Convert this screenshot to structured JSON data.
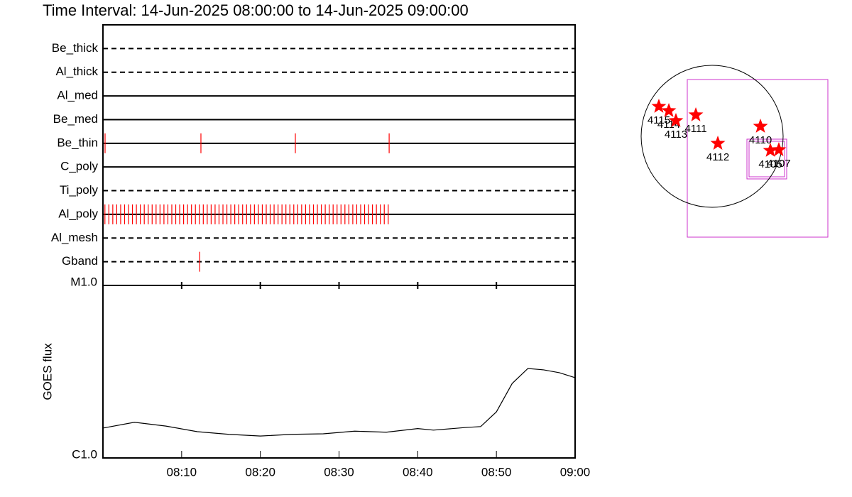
{
  "chart_data": [
    {
      "type": "timeline",
      "title": "Time Interval: 14-Jun-2025 08:00:00 to 14-Jun-2025 09:00:00",
      "xlim": [
        0,
        60
      ],
      "event_color": "#ff0000",
      "rows": [
        {
          "name": "Be_thick",
          "style": "dashed",
          "events": []
        },
        {
          "name": "Al_thick",
          "style": "dashed",
          "events": []
        },
        {
          "name": "Al_med",
          "style": "solid",
          "events": []
        },
        {
          "name": "Be_med",
          "style": "solid",
          "events": []
        },
        {
          "name": "Be_thin",
          "style": "solid",
          "events": [
            0.27,
            12.45,
            24.45,
            36.37
          ]
        },
        {
          "name": "C_poly",
          "style": "solid",
          "events": []
        },
        {
          "name": "Ti_poly",
          "style": "dashed",
          "events": []
        },
        {
          "name": "Al_poly",
          "style": "solid",
          "events": [
            0.25,
            0.75,
            1.25,
            1.75,
            2.25,
            2.75,
            3.25,
            3.75,
            4.25,
            4.75,
            5.25,
            5.75,
            6.25,
            6.75,
            7.25,
            7.75,
            8.25,
            8.75,
            9.25,
            9.75,
            10.25,
            10.75,
            11.25,
            11.75,
            12.25,
            12.75,
            13.25,
            13.75,
            14.25,
            14.75,
            15.25,
            15.75,
            16.25,
            16.75,
            17.25,
            17.75,
            18.25,
            18.75,
            19.25,
            19.75,
            20.25,
            20.75,
            21.25,
            21.75,
            22.25,
            22.75,
            23.25,
            23.75,
            24.25,
            24.75,
            25.25,
            25.75,
            26.25,
            26.75,
            27.25,
            27.75,
            28.25,
            28.75,
            29.25,
            29.75,
            30.25,
            30.75,
            31.25,
            31.75,
            32.25,
            32.75,
            33.25,
            33.75,
            34.25,
            34.75,
            35.25,
            35.75,
            36.25
          ]
        },
        {
          "name": "Al_mesh",
          "style": "dashed",
          "events": []
        },
        {
          "name": "Gband",
          "style": "dashed",
          "events": [
            12.3
          ]
        }
      ]
    },
    {
      "type": "line",
      "ylabel": "GOES flux",
      "log": true,
      "color": "#000000",
      "xlim": [
        0,
        60
      ],
      "xticks": [
        {
          "value": 10,
          "label": "08:10"
        },
        {
          "value": 20,
          "label": "08:20"
        },
        {
          "value": 30,
          "label": "08:30"
        },
        {
          "value": 40,
          "label": "08:40"
        },
        {
          "value": 50,
          "label": "08:50"
        },
        {
          "value": 60,
          "label": "09:00"
        }
      ],
      "ylim": [
        1e-06,
        1e-05
      ],
      "yticks": [
        {
          "value": 1e-06,
          "label": "C1.0"
        },
        {
          "value": 1e-05,
          "label": "M1.0"
        }
      ],
      "x": [
        0,
        4,
        8,
        12,
        16,
        20,
        24,
        28,
        32,
        36,
        40,
        42,
        46,
        48,
        50,
        52,
        54,
        56,
        58,
        60
      ],
      "values": [
        1.49e-06,
        1.61e-06,
        1.53e-06,
        1.42e-06,
        1.37e-06,
        1.34e-06,
        1.37e-06,
        1.38e-06,
        1.43e-06,
        1.41e-06,
        1.48e-06,
        1.45e-06,
        1.5e-06,
        1.52e-06,
        1.85e-06,
        2.7e-06,
        3.3e-06,
        3.24e-06,
        3.12e-06,
        2.92e-06
      ]
    },
    {
      "type": "map",
      "rsun": 945,
      "color": "#ff0000",
      "regions": [
        {
          "label": "4115",
          "x": -709,
          "y": 397
        },
        {
          "label": "4114",
          "x": -576,
          "y": 340
        },
        {
          "label": "4113",
          "x": -482,
          "y": 208
        },
        {
          "label": "4111",
          "x": -217,
          "y": 284
        },
        {
          "label": "4112",
          "x": 76,
          "y": -95
        },
        {
          "label": "4110",
          "x": 643,
          "y": 132
        },
        {
          "label": "4105",
          "x": 775,
          "y": -189
        },
        {
          "label": "4107",
          "x": 888,
          "y": -180
        }
      ]
    }
  ]
}
